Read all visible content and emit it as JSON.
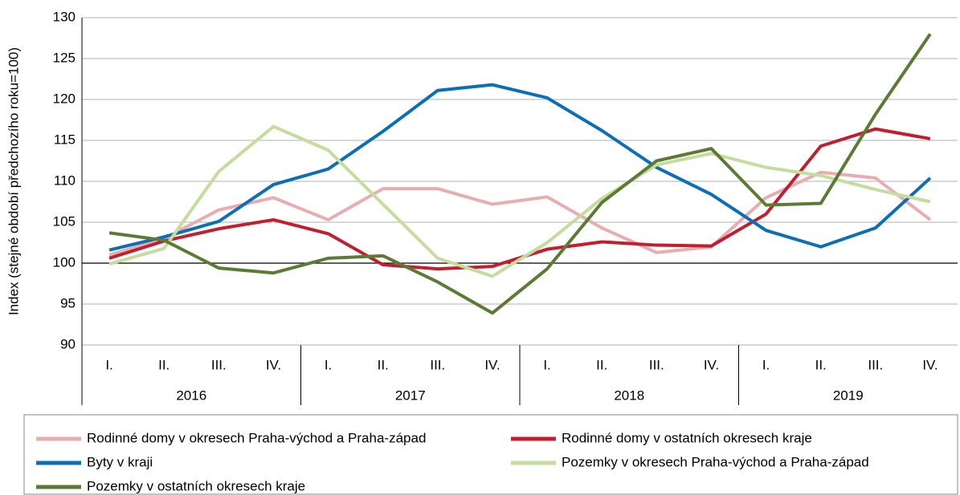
{
  "chart_data": {
    "type": "line",
    "y_label": "Index (stejné období předchozího roku=100)",
    "categories": [
      "I.",
      "II.",
      "III.",
      "IV.",
      "I.",
      "II.",
      "III.",
      "IV.",
      "I.",
      "II.",
      "III.",
      "IV.",
      "I.",
      "II.",
      "III.",
      "IV."
    ],
    "category_groups": [
      "2016",
      "2017",
      "2018",
      "2019"
    ],
    "ylim": [
      90,
      130
    ],
    "yticks": [
      90,
      95,
      100,
      105,
      110,
      115,
      120,
      125,
      130
    ],
    "grid": true,
    "x_axis_crossing": 100,
    "series": [
      {
        "name": "Rodinné domy v okresech Praha-východ a Praha-západ",
        "color": "#e8adb0",
        "values": [
          101,
          103,
          106.5,
          108,
          105.3,
          109.1,
          109.1,
          107.2,
          108.1,
          104.3,
          101.3,
          102,
          108,
          111.1,
          110.4,
          105.3
        ]
      },
      {
        "name": "Rodinné domy v ostatních okresech kraje",
        "color": "#c11f2f",
        "values": [
          100.6,
          102.7,
          104.2,
          105.3,
          103.6,
          99.8,
          99.3,
          99.6,
          101.7,
          102.6,
          102.2,
          102.1,
          106,
          114.3,
          116.4,
          115.2
        ]
      },
      {
        "name": "Byty v kraji",
        "color": "#0b6fb7",
        "values": [
          101.6,
          103.2,
          105.1,
          109.6,
          111.5,
          116.1,
          121.1,
          121.8,
          120.2,
          116.2,
          111.7,
          108.4,
          104,
          102,
          104.3,
          110.4
        ]
      },
      {
        "name": "Pozemky v okresech Praha-východ a Praha-západ",
        "color": "#c4dc9c",
        "values": [
          99.9,
          101.8,
          111.2,
          116.7,
          113.8,
          107.2,
          100.6,
          98.4,
          102.5,
          107.9,
          112,
          113.4,
          111.7,
          110.7,
          109,
          107.5
        ]
      },
      {
        "name": "Pozemky v ostatních okresech kraje",
        "color": "#5b7a33",
        "values": [
          103.7,
          102.8,
          99.4,
          98.8,
          100.6,
          100.9,
          97.7,
          93.9,
          99.3,
          107.4,
          112.5,
          114,
          107.1,
          107.3,
          118.2,
          128
        ]
      }
    ]
  }
}
